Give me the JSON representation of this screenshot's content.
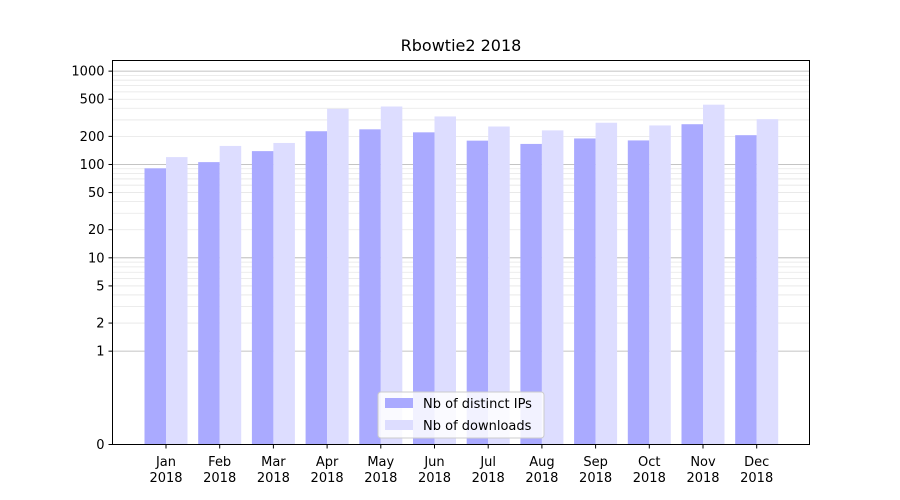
{
  "chart_data": {
    "type": "bar",
    "title": "Rbowtie2 2018",
    "xlabel": "",
    "ylabel": "",
    "yscale": "symlog",
    "ylim": [
      0,
      1300
    ],
    "yticks": [
      0,
      1,
      2,
      5,
      10,
      20,
      50,
      100,
      200,
      500,
      1000
    ],
    "categories": [
      "Jan\n2018",
      "Feb\n2018",
      "Mar\n2018",
      "Apr\n2018",
      "May\n2018",
      "Jun\n2018",
      "Jul\n2018",
      "Aug\n2018",
      "Sep\n2018",
      "Oct\n2018",
      "Nov\n2018",
      "Dec\n2018"
    ],
    "category_lines": [
      [
        "Jan",
        "2018"
      ],
      [
        "Feb",
        "2018"
      ],
      [
        "Mar",
        "2018"
      ],
      [
        "Apr",
        "2018"
      ],
      [
        "May",
        "2018"
      ],
      [
        "Jun",
        "2018"
      ],
      [
        "Jul",
        "2018"
      ],
      [
        "Aug",
        "2018"
      ],
      [
        "Sep",
        "2018"
      ],
      [
        "Oct",
        "2018"
      ],
      [
        "Nov",
        "2018"
      ],
      [
        "Dec",
        "2018"
      ]
    ],
    "series": [
      {
        "name": "Nb of distinct IPs",
        "color": "#aaaaff",
        "values": [
          91,
          106,
          139,
          227,
          238,
          221,
          180,
          166,
          190,
          181,
          270,
          206
        ]
      },
      {
        "name": "Nb of downloads",
        "color": "#ddddff",
        "values": [
          120,
          158,
          170,
          395,
          418,
          327,
          255,
          232,
          280,
          262,
          437,
          306
        ]
      }
    ],
    "legend": "bottom-center",
    "grid": true
  }
}
